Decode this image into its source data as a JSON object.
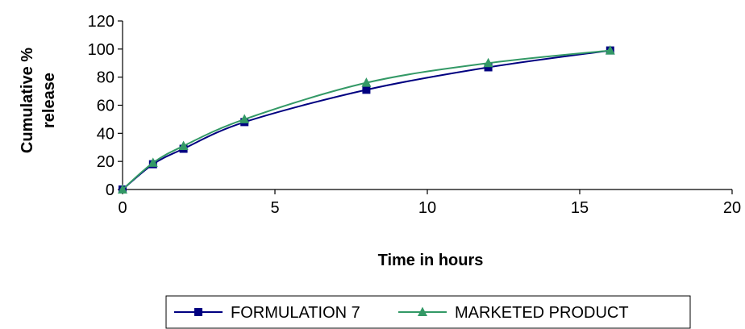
{
  "chart_data": {
    "type": "line",
    "title": "",
    "xlabel": "Time in hours",
    "ylabel": "Cumulative % release",
    "ylabel_lines": [
      "Cumulative %",
      "release"
    ],
    "xlim": [
      0,
      20
    ],
    "ylim": [
      0,
      120
    ],
    "xticks": [
      0,
      5,
      10,
      15,
      20
    ],
    "yticks": [
      0,
      20,
      40,
      60,
      80,
      100,
      120
    ],
    "grid": false,
    "legend_position": "bottom",
    "series": [
      {
        "name": "FORMULATION 7",
        "color": "#000080",
        "marker": "square",
        "x": [
          0,
          1,
          2,
          4,
          8,
          12,
          16
        ],
        "y": [
          0,
          18,
          29,
          48,
          71,
          87,
          99
        ]
      },
      {
        "name": "MARKETED PRODUCT",
        "color": "#339966",
        "marker": "triangle",
        "x": [
          0,
          1,
          2,
          4,
          8,
          12,
          16
        ],
        "y": [
          0,
          19,
          31,
          50,
          76,
          90,
          99
        ]
      }
    ]
  }
}
